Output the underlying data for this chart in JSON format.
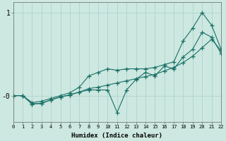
{
  "xlabel": "Humidex (Indice chaleur)",
  "background_color": "#cce8e0",
  "grid_color": "#aacfc8",
  "line_color": "#1a7068",
  "xlim": [
    0,
    22
  ],
  "ylim": [
    -0.55,
    1.15
  ],
  "xticks": [
    0,
    1,
    2,
    3,
    4,
    5,
    6,
    7,
    8,
    9,
    10,
    11,
    12,
    13,
    14,
    15,
    16,
    17,
    18,
    19,
    20,
    21,
    22
  ],
  "ytick_positions": [
    -0.18,
    1.0
  ],
  "ytick_labels": [
    "-0",
    "1"
  ],
  "series1_x": [
    0,
    1,
    2,
    3,
    4,
    5,
    6,
    7,
    8,
    9,
    10,
    11,
    12,
    13,
    14,
    15,
    16,
    17,
    18,
    19,
    20,
    21,
    22
  ],
  "series1_y": [
    -0.18,
    -0.18,
    -0.28,
    -0.26,
    -0.22,
    -0.18,
    -0.14,
    -0.06,
    0.1,
    0.15,
    0.2,
    0.18,
    0.2,
    0.2,
    0.2,
    0.22,
    0.26,
    0.3,
    0.6,
    0.78,
    1.0,
    0.82,
    0.48
  ],
  "series2_x": [
    0,
    1,
    2,
    3,
    4,
    5,
    6,
    7,
    8,
    9,
    10,
    11,
    12,
    13,
    14,
    15,
    16,
    17,
    18,
    19,
    20,
    21,
    22
  ],
  "series2_y": [
    -0.18,
    -0.18,
    -0.3,
    -0.29,
    -0.24,
    -0.2,
    -0.17,
    -0.13,
    -0.08,
    -0.06,
    -0.03,
    0.0,
    0.03,
    0.06,
    0.09,
    0.12,
    0.17,
    0.22,
    0.29,
    0.38,
    0.5,
    0.62,
    0.46
  ],
  "series3_x": [
    0,
    1,
    2,
    3,
    4,
    5,
    6,
    7,
    8,
    9,
    10,
    11,
    12,
    13,
    14,
    15,
    16,
    17,
    18,
    19,
    20,
    21,
    22
  ],
  "series3_y": [
    -0.18,
    -0.18,
    -0.3,
    -0.29,
    -0.24,
    -0.2,
    -0.17,
    -0.13,
    -0.1,
    -0.1,
    -0.1,
    -0.42,
    -0.1,
    0.05,
    0.15,
    0.1,
    0.24,
    0.2,
    0.37,
    0.48,
    0.72,
    0.65,
    0.42
  ]
}
